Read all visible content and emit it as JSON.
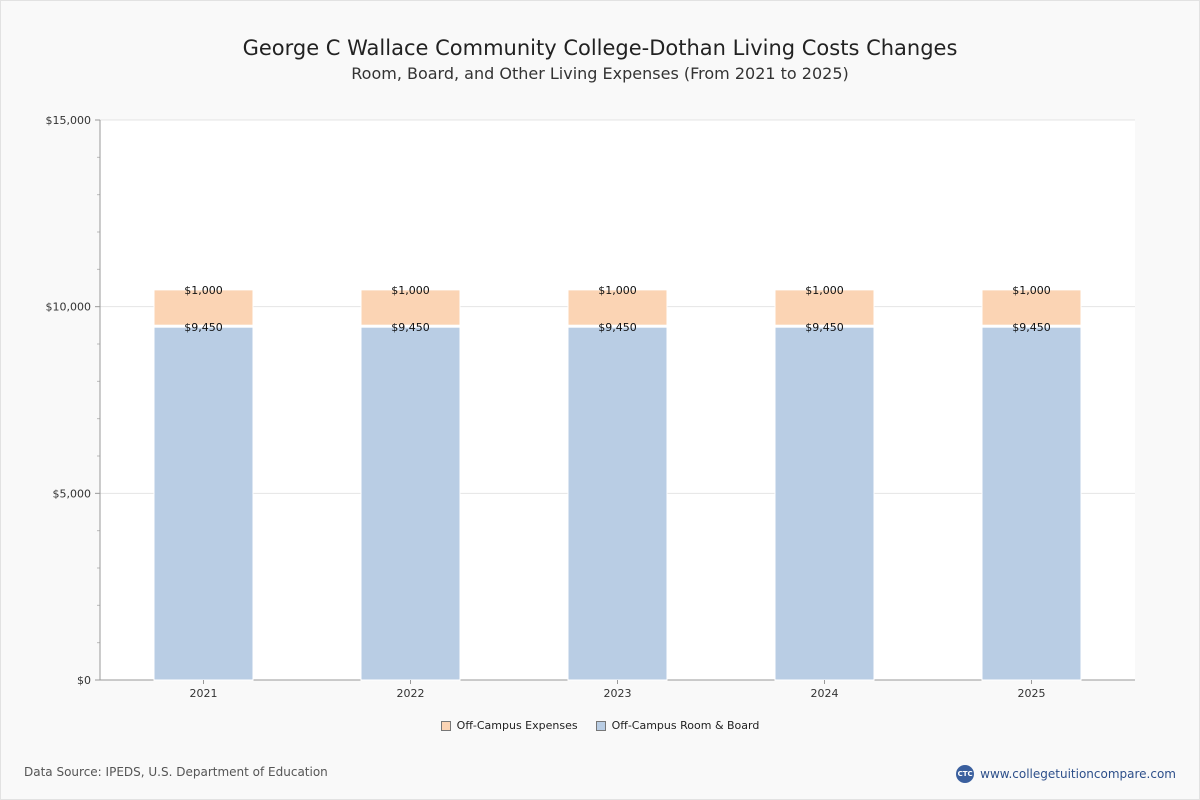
{
  "title": "George C Wallace Community College-Dothan Living Costs Changes",
  "subtitle": "Room, Board, and Other Living Expenses (From 2021 to 2025)",
  "colors": {
    "off_campus_expenses": "#fbd4b4",
    "off_campus_room_board": "#b9cde4"
  },
  "chart_data": {
    "type": "bar",
    "stacked": true,
    "categories": [
      "2021",
      "2022",
      "2023",
      "2024",
      "2025"
    ],
    "series": [
      {
        "name": "Off-Campus Room & Board",
        "values": [
          9450,
          9450,
          9450,
          9450,
          9450
        ],
        "labels": [
          "$9,450",
          "$9,450",
          "$9,450",
          "$9,450",
          "$9,450"
        ]
      },
      {
        "name": "Off-Campus Expenses",
        "values": [
          1000,
          1000,
          1000,
          1000,
          1000
        ],
        "labels": [
          "$1,000",
          "$1,000",
          "$1,000",
          "$1,000",
          "$1,000"
        ]
      }
    ],
    "ylim": [
      0,
      15000
    ],
    "yticks": [
      0,
      5000,
      10000,
      15000
    ],
    "ytick_labels": [
      "$0",
      "$5,000",
      "$10,000",
      "$15,000"
    ],
    "legend_position": "bottom-center",
    "grid": true
  },
  "legend": {
    "items": [
      "Off-Campus Expenses",
      "Off-Campus Room & Board"
    ]
  },
  "footer": {
    "source": "Data Source: IPEDS, U.S. Department of Education",
    "brand": "www.collegetuitioncompare.com",
    "brand_logo_text": "CTC"
  }
}
